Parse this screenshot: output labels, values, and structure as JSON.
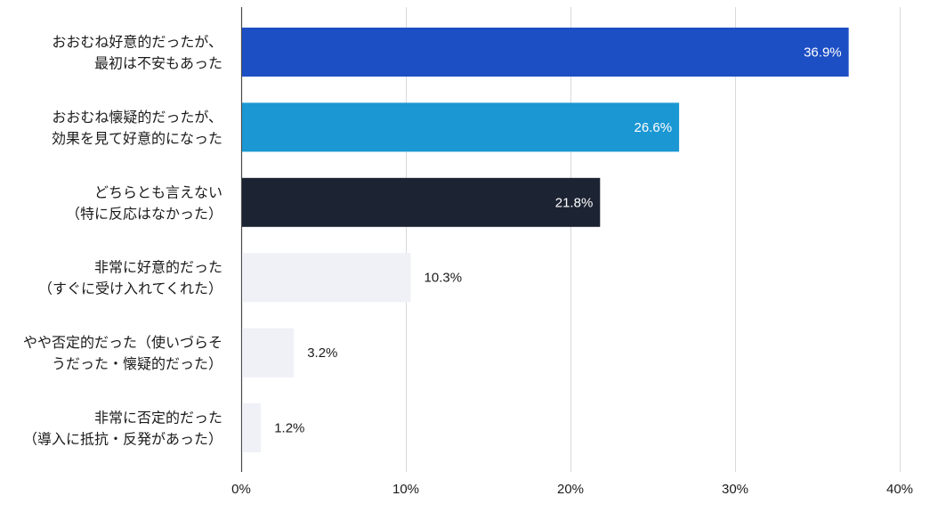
{
  "chart_data": {
    "type": "bar",
    "orientation": "horizontal",
    "categories": [
      [
        "おおむね好意的だったが、",
        "最初は不安もあった"
      ],
      [
        "おおむね懐疑的だったが、",
        "効果を見て好意的になった"
      ],
      [
        "どちらとも言えない",
        "（特に反応はなかった）"
      ],
      [
        "非常に好意的だった",
        "（すぐに受け入れてくれた）"
      ],
      [
        "やや否定的だった（使いづらそ",
        "うだった・懐疑的だった）"
      ],
      [
        "非常に否定的だった",
        "（導入に抵抗・反発があった）"
      ]
    ],
    "values": [
      36.9,
      26.6,
      21.8,
      10.3,
      3.2,
      1.2
    ],
    "value_labels": [
      "36.9%",
      "26.6%",
      "21.8%",
      "10.3%",
      "3.2%",
      "1.2%"
    ],
    "bar_colors": [
      "#1d4fc4",
      "#1b97d3",
      "#1c2333",
      "#eff1f7",
      "#eff1f7",
      "#eff1f7"
    ],
    "label_colors": [
      "#ffffff",
      "#ffffff",
      "#ffffff",
      "#1b1b1b",
      "#1b1b1b",
      "#1b1b1b"
    ],
    "label_inside": [
      true,
      true,
      true,
      false,
      false,
      false
    ],
    "xlim": [
      0,
      40
    ],
    "xticks": [
      0,
      10,
      20,
      30,
      40
    ],
    "xtick_labels": [
      "0%",
      "10%",
      "20%",
      "30%",
      "40%"
    ],
    "grid": true,
    "gridline_color": "#d9d9d9",
    "title": "",
    "xlabel": "",
    "ylabel": ""
  }
}
